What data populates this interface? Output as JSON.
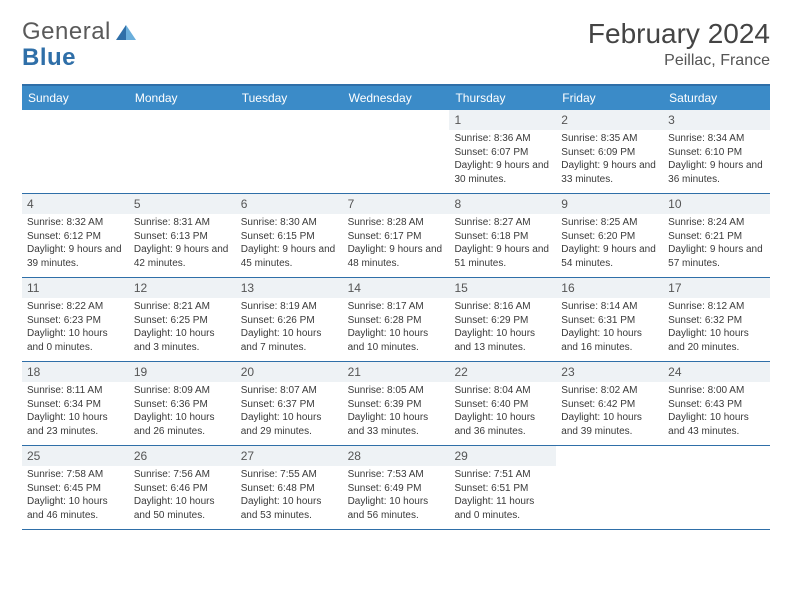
{
  "logo": {
    "text1": "General",
    "text2": "Blue"
  },
  "title": "February 2024",
  "location": "Peillac, France",
  "days": [
    "Sunday",
    "Monday",
    "Tuesday",
    "Wednesday",
    "Thursday",
    "Friday",
    "Saturday"
  ],
  "colors": {
    "header_bg": "#3b8bc8",
    "rule": "#2f6fa8",
    "daynum_bg": "#eef2f5"
  },
  "weeks": [
    [
      {
        "n": "",
        "empty": true
      },
      {
        "n": "",
        "empty": true
      },
      {
        "n": "",
        "empty": true
      },
      {
        "n": "",
        "empty": true
      },
      {
        "n": "1",
        "sr": "Sunrise: 8:36 AM",
        "ss": "Sunset: 6:07 PM",
        "dl": "Daylight: 9 hours and 30 minutes."
      },
      {
        "n": "2",
        "sr": "Sunrise: 8:35 AM",
        "ss": "Sunset: 6:09 PM",
        "dl": "Daylight: 9 hours and 33 minutes."
      },
      {
        "n": "3",
        "sr": "Sunrise: 8:34 AM",
        "ss": "Sunset: 6:10 PM",
        "dl": "Daylight: 9 hours and 36 minutes."
      }
    ],
    [
      {
        "n": "4",
        "sr": "Sunrise: 8:32 AM",
        "ss": "Sunset: 6:12 PM",
        "dl": "Daylight: 9 hours and 39 minutes."
      },
      {
        "n": "5",
        "sr": "Sunrise: 8:31 AM",
        "ss": "Sunset: 6:13 PM",
        "dl": "Daylight: 9 hours and 42 minutes."
      },
      {
        "n": "6",
        "sr": "Sunrise: 8:30 AM",
        "ss": "Sunset: 6:15 PM",
        "dl": "Daylight: 9 hours and 45 minutes."
      },
      {
        "n": "7",
        "sr": "Sunrise: 8:28 AM",
        "ss": "Sunset: 6:17 PM",
        "dl": "Daylight: 9 hours and 48 minutes."
      },
      {
        "n": "8",
        "sr": "Sunrise: 8:27 AM",
        "ss": "Sunset: 6:18 PM",
        "dl": "Daylight: 9 hours and 51 minutes."
      },
      {
        "n": "9",
        "sr": "Sunrise: 8:25 AM",
        "ss": "Sunset: 6:20 PM",
        "dl": "Daylight: 9 hours and 54 minutes."
      },
      {
        "n": "10",
        "sr": "Sunrise: 8:24 AM",
        "ss": "Sunset: 6:21 PM",
        "dl": "Daylight: 9 hours and 57 minutes."
      }
    ],
    [
      {
        "n": "11",
        "sr": "Sunrise: 8:22 AM",
        "ss": "Sunset: 6:23 PM",
        "dl": "Daylight: 10 hours and 0 minutes."
      },
      {
        "n": "12",
        "sr": "Sunrise: 8:21 AM",
        "ss": "Sunset: 6:25 PM",
        "dl": "Daylight: 10 hours and 3 minutes."
      },
      {
        "n": "13",
        "sr": "Sunrise: 8:19 AM",
        "ss": "Sunset: 6:26 PM",
        "dl": "Daylight: 10 hours and 7 minutes."
      },
      {
        "n": "14",
        "sr": "Sunrise: 8:17 AM",
        "ss": "Sunset: 6:28 PM",
        "dl": "Daylight: 10 hours and 10 minutes."
      },
      {
        "n": "15",
        "sr": "Sunrise: 8:16 AM",
        "ss": "Sunset: 6:29 PM",
        "dl": "Daylight: 10 hours and 13 minutes."
      },
      {
        "n": "16",
        "sr": "Sunrise: 8:14 AM",
        "ss": "Sunset: 6:31 PM",
        "dl": "Daylight: 10 hours and 16 minutes."
      },
      {
        "n": "17",
        "sr": "Sunrise: 8:12 AM",
        "ss": "Sunset: 6:32 PM",
        "dl": "Daylight: 10 hours and 20 minutes."
      }
    ],
    [
      {
        "n": "18",
        "sr": "Sunrise: 8:11 AM",
        "ss": "Sunset: 6:34 PM",
        "dl": "Daylight: 10 hours and 23 minutes."
      },
      {
        "n": "19",
        "sr": "Sunrise: 8:09 AM",
        "ss": "Sunset: 6:36 PM",
        "dl": "Daylight: 10 hours and 26 minutes."
      },
      {
        "n": "20",
        "sr": "Sunrise: 8:07 AM",
        "ss": "Sunset: 6:37 PM",
        "dl": "Daylight: 10 hours and 29 minutes."
      },
      {
        "n": "21",
        "sr": "Sunrise: 8:05 AM",
        "ss": "Sunset: 6:39 PM",
        "dl": "Daylight: 10 hours and 33 minutes."
      },
      {
        "n": "22",
        "sr": "Sunrise: 8:04 AM",
        "ss": "Sunset: 6:40 PM",
        "dl": "Daylight: 10 hours and 36 minutes."
      },
      {
        "n": "23",
        "sr": "Sunrise: 8:02 AM",
        "ss": "Sunset: 6:42 PM",
        "dl": "Daylight: 10 hours and 39 minutes."
      },
      {
        "n": "24",
        "sr": "Sunrise: 8:00 AM",
        "ss": "Sunset: 6:43 PM",
        "dl": "Daylight: 10 hours and 43 minutes."
      }
    ],
    [
      {
        "n": "25",
        "sr": "Sunrise: 7:58 AM",
        "ss": "Sunset: 6:45 PM",
        "dl": "Daylight: 10 hours and 46 minutes."
      },
      {
        "n": "26",
        "sr": "Sunrise: 7:56 AM",
        "ss": "Sunset: 6:46 PM",
        "dl": "Daylight: 10 hours and 50 minutes."
      },
      {
        "n": "27",
        "sr": "Sunrise: 7:55 AM",
        "ss": "Sunset: 6:48 PM",
        "dl": "Daylight: 10 hours and 53 minutes."
      },
      {
        "n": "28",
        "sr": "Sunrise: 7:53 AM",
        "ss": "Sunset: 6:49 PM",
        "dl": "Daylight: 10 hours and 56 minutes."
      },
      {
        "n": "29",
        "sr": "Sunrise: 7:51 AM",
        "ss": "Sunset: 6:51 PM",
        "dl": "Daylight: 11 hours and 0 minutes."
      },
      {
        "n": "",
        "empty": true
      },
      {
        "n": "",
        "empty": true
      }
    ]
  ]
}
